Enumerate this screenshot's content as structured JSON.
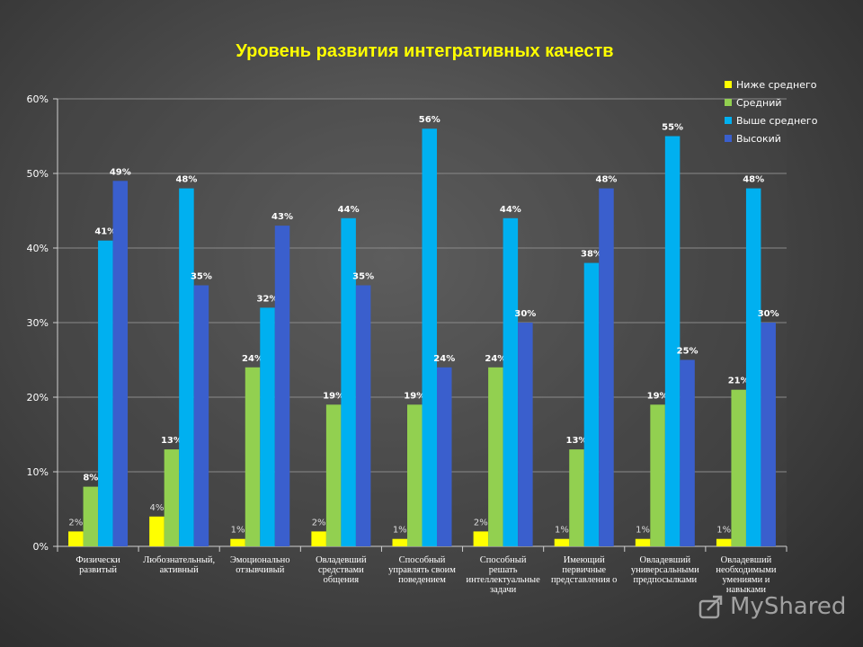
{
  "chart_data": {
    "type": "bar",
    "title": "Уровень развития интегративных качеств",
    "categories": [
      "Физически развитый",
      "Любознательный, активный",
      "Эмоционально отзывчивый",
      "Овладевший средствами общения",
      "Способный управлять своим поведением",
      "Способный решать интеллектуальные задачи",
      "Имеющий первичные представления о",
      "Овладевший универсальными предпосылками",
      "Овладевший необходимыми умениями и навыками"
    ],
    "series": [
      {
        "name": "Ниже среднего",
        "color": "#ffff00",
        "values": [
          2,
          4,
          1,
          2,
          1,
          2,
          1,
          1,
          1
        ]
      },
      {
        "name": "Средний",
        "color": "#92d050",
        "values": [
          8,
          13,
          24,
          19,
          19,
          24,
          13,
          19,
          21
        ]
      },
      {
        "name": "Выше среднего",
        "color": "#00b0f0",
        "values": [
          41,
          48,
          32,
          44,
          56,
          44,
          38,
          55,
          48
        ]
      },
      {
        "name": "Высокий",
        "color": "#3a5fcd",
        "values": [
          49,
          35,
          43,
          35,
          24,
          30,
          48,
          25,
          30
        ]
      }
    ],
    "data_labels": [
      [
        "2%",
        "4%",
        "1%",
        "2%",
        "1%",
        "2%",
        "1%",
        "1%",
        "1%"
      ],
      [
        "8%",
        "13%",
        "24%",
        "19%",
        "19%",
        "24%",
        "13%",
        "19%",
        "21%"
      ],
      [
        "41%",
        "48%",
        "32%",
        "44%",
        "56%",
        "44%",
        "38%",
        "55%",
        "48%"
      ],
      [
        "49%",
        "35%",
        "43%",
        "35%",
        "24%",
        "30%",
        "48%",
        "25%",
        "30%"
      ]
    ],
    "y_ticks": [
      "0%",
      "10%",
      "20%",
      "30%",
      "40%",
      "50%",
      "60%"
    ],
    "ylim": [
      0,
      60
    ],
    "grid": true,
    "legend": "top-right"
  },
  "watermark": {
    "text": "MyShared"
  }
}
